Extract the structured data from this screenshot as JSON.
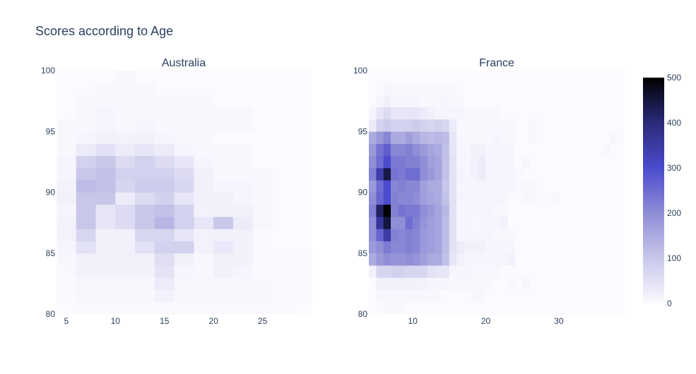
{
  "chart_data": {
    "type": "heatmap",
    "title": "Scores according to Age",
    "colorscale": [
      "#fbfaff",
      "#c8c7ea",
      "#8f8ed6",
      "#4b4bcd",
      "#2a2a7a",
      "#000000"
    ],
    "colorbar": {
      "range": [
        0,
        500
      ],
      "ticks": [
        0,
        100,
        200,
        300,
        400,
        500
      ]
    },
    "subplots": [
      {
        "title": "Australia",
        "x_range": [
          4,
          30
        ],
        "y_range": [
          80,
          100
        ],
        "x_bin": 2,
        "y_bin": 1,
        "x_ticks": [
          "5",
          "10",
          "15",
          "20",
          "25"
        ],
        "y_ticks": [
          "80",
          "85",
          "90",
          "95",
          "100"
        ],
        "x_start": 4,
        "y_start": 80,
        "z": [
          [
            0,
            2,
            2,
            2,
            2,
            2,
            2,
            1,
            1,
            1,
            1,
            1,
            0
          ],
          [
            2,
            5,
            5,
            5,
            5,
            15,
            5,
            5,
            5,
            5,
            5,
            1,
            1
          ],
          [
            2,
            8,
            8,
            8,
            8,
            30,
            5,
            5,
            5,
            5,
            5,
            1,
            1
          ],
          [
            4,
            15,
            15,
            15,
            15,
            45,
            10,
            5,
            20,
            10,
            2,
            1,
            3
          ],
          [
            5,
            20,
            20,
            20,
            20,
            55,
            20,
            5,
            20,
            20,
            2,
            1,
            3
          ],
          [
            10,
            50,
            20,
            20,
            50,
            80,
            80,
            15,
            35,
            20,
            2,
            0,
            0
          ],
          [
            15,
            70,
            20,
            20,
            70,
            70,
            40,
            15,
            20,
            20,
            2,
            0,
            0
          ],
          [
            15,
            100,
            40,
            60,
            100,
            130,
            80,
            40,
            100,
            30,
            5,
            0,
            0
          ],
          [
            10,
            100,
            40,
            60,
            100,
            110,
            80,
            15,
            20,
            20,
            5,
            0,
            0
          ],
          [
            20,
            100,
            100,
            30,
            60,
            80,
            40,
            20,
            20,
            10,
            5,
            0,
            0
          ],
          [
            15,
            120,
            110,
            70,
            90,
            90,
            70,
            20,
            10,
            10,
            5,
            0,
            0
          ],
          [
            10,
            100,
            110,
            80,
            80,
            80,
            60,
            20,
            5,
            5,
            5,
            0,
            0
          ],
          [
            10,
            80,
            100,
            60,
            80,
            60,
            40,
            10,
            5,
            5,
            0,
            0,
            0
          ],
          [
            5,
            30,
            50,
            30,
            40,
            30,
            10,
            5,
            5,
            5,
            0,
            0,
            0
          ],
          [
            5,
            10,
            20,
            15,
            20,
            10,
            5,
            5,
            0,
            0,
            0,
            0,
            0
          ],
          [
            5,
            5,
            10,
            5,
            10,
            5,
            5,
            5,
            5,
            5,
            0,
            0,
            0
          ],
          [
            0,
            5,
            10,
            5,
            5,
            5,
            5,
            5,
            5,
            5,
            0,
            0,
            0
          ],
          [
            0,
            5,
            5,
            5,
            5,
            5,
            5,
            5,
            0,
            0,
            0,
            0,
            0
          ],
          [
            0,
            0,
            5,
            5,
            5,
            0,
            0,
            0,
            0,
            0,
            0,
            0,
            0
          ],
          [
            0,
            0,
            0,
            5,
            0,
            0,
            0,
            0,
            0,
            0,
            0,
            0,
            0
          ]
        ]
      },
      {
        "title": "France",
        "x_range": [
          4,
          39
        ],
        "y_range": [
          80,
          100
        ],
        "x_bin": 1,
        "y_bin": 1,
        "x_ticks": [
          "10",
          "20",
          "30"
        ],
        "y_ticks": [
          "80",
          "85",
          "90",
          "95",
          "100"
        ],
        "x_start": 4,
        "y_start": 80,
        "z": [
          [
            0,
            0,
            5,
            5,
            5,
            0,
            0,
            0,
            0,
            0,
            0,
            0,
            0,
            0,
            0,
            0,
            0,
            0,
            0,
            0,
            0,
            0,
            0,
            0,
            0,
            0,
            0,
            0,
            0,
            0,
            0,
            0,
            0,
            0,
            0
          ],
          [
            0,
            5,
            5,
            5,
            5,
            5,
            5,
            5,
            5,
            5,
            0,
            0,
            0,
            0,
            5,
            5,
            0,
            0,
            0,
            0,
            0,
            0,
            0,
            0,
            0,
            0,
            0,
            0,
            0,
            0,
            0,
            0,
            0,
            0,
            0
          ],
          [
            0,
            20,
            20,
            20,
            20,
            20,
            15,
            15,
            10,
            10,
            10,
            5,
            5,
            5,
            5,
            5,
            5,
            0,
            0,
            5,
            0,
            5,
            0,
            0,
            0,
            0,
            0,
            0,
            0,
            0,
            0,
            0,
            0,
            0,
            0
          ],
          [
            20,
            70,
            70,
            80,
            80,
            70,
            70,
            70,
            50,
            40,
            40,
            10,
            10,
            10,
            5,
            5,
            5,
            5,
            0,
            0,
            0,
            0,
            0,
            0,
            0,
            0,
            0,
            0,
            0,
            0,
            0,
            0,
            0,
            0,
            0
          ],
          [
            150,
            180,
            200,
            190,
            190,
            200,
            190,
            170,
            150,
            150,
            110,
            40,
            20,
            10,
            10,
            10,
            10,
            10,
            10,
            20,
            0,
            0,
            0,
            0,
            0,
            0,
            0,
            0,
            0,
            0,
            0,
            0,
            0,
            0,
            0
          ],
          [
            180,
            200,
            230,
            210,
            210,
            220,
            210,
            180,
            170,
            160,
            120,
            50,
            30,
            20,
            20,
            20,
            10,
            10,
            10,
            10,
            0,
            0,
            0,
            0,
            0,
            0,
            0,
            0,
            0,
            0,
            0,
            0,
            0,
            0,
            0
          ],
          [
            200,
            260,
            350,
            220,
            210,
            220,
            210,
            180,
            170,
            160,
            120,
            50,
            10,
            10,
            10,
            10,
            10,
            5,
            5,
            5,
            0,
            0,
            0,
            0,
            0,
            0,
            0,
            0,
            0,
            0,
            0,
            0,
            0,
            0,
            0
          ],
          [
            200,
            360,
            450,
            200,
            200,
            250,
            220,
            190,
            170,
            160,
            120,
            50,
            10,
            10,
            5,
            10,
            10,
            10,
            20,
            0,
            0,
            0,
            0,
            0,
            0,
            0,
            0,
            0,
            0,
            0,
            0,
            0,
            0,
            0,
            0
          ],
          [
            220,
            420,
            500,
            220,
            240,
            230,
            230,
            200,
            180,
            160,
            130,
            50,
            10,
            10,
            10,
            10,
            10,
            5,
            5,
            0,
            0,
            0,
            0,
            0,
            0,
            0,
            0,
            0,
            0,
            0,
            0,
            0,
            0,
            0,
            0
          ],
          [
            200,
            260,
            300,
            220,
            210,
            210,
            200,
            170,
            160,
            150,
            110,
            50,
            10,
            10,
            10,
            10,
            10,
            10,
            10,
            0,
            0,
            5,
            5,
            0,
            0,
            5,
            0,
            0,
            0,
            0,
            0,
            0,
            0,
            0,
            0
          ],
          [
            180,
            250,
            300,
            210,
            220,
            210,
            210,
            170,
            150,
            150,
            100,
            50,
            10,
            10,
            10,
            10,
            10,
            10,
            10,
            10,
            5,
            5,
            5,
            0,
            0,
            0,
            0,
            0,
            0,
            0,
            0,
            0,
            0,
            0,
            0
          ],
          [
            220,
            340,
            440,
            240,
            230,
            250,
            250,
            200,
            180,
            160,
            110,
            50,
            10,
            10,
            20,
            30,
            10,
            10,
            10,
            10,
            5,
            0,
            0,
            0,
            0,
            0,
            0,
            0,
            0,
            0,
            0,
            0,
            0,
            0,
            0
          ],
          [
            200,
            250,
            300,
            230,
            230,
            220,
            220,
            200,
            170,
            160,
            110,
            50,
            10,
            10,
            20,
            30,
            10,
            10,
            10,
            10,
            0,
            5,
            0,
            0,
            0,
            0,
            0,
            0,
            0,
            0,
            0,
            0,
            0,
            0,
            0
          ],
          [
            180,
            240,
            270,
            210,
            210,
            220,
            200,
            180,
            160,
            150,
            110,
            40,
            10,
            10,
            20,
            20,
            10,
            10,
            10,
            10,
            0,
            0,
            0,
            0,
            0,
            0,
            0,
            0,
            0,
            0,
            0,
            0,
            5,
            0,
            0
          ],
          [
            150,
            180,
            210,
            150,
            150,
            170,
            150,
            130,
            120,
            130,
            120,
            40,
            5,
            5,
            5,
            5,
            5,
            10,
            5,
            5,
            0,
            0,
            5,
            0,
            0,
            0,
            0,
            0,
            0,
            0,
            0,
            0,
            0,
            5,
            0
          ],
          [
            30,
            80,
            90,
            80,
            80,
            80,
            90,
            80,
            70,
            80,
            70,
            30,
            5,
            5,
            5,
            5,
            5,
            5,
            5,
            5,
            0,
            0,
            5,
            0,
            0,
            0,
            0,
            0,
            0,
            0,
            0,
            0,
            0,
            0,
            0
          ],
          [
            10,
            40,
            60,
            40,
            40,
            40,
            40,
            30,
            20,
            10,
            10,
            10,
            10,
            5,
            5,
            5,
            5,
            5,
            0,
            0,
            0,
            0,
            0,
            0,
            0,
            0,
            0,
            0,
            0,
            0,
            0,
            0,
            0,
            0,
            0
          ],
          [
            0,
            10,
            20,
            10,
            10,
            10,
            10,
            5,
            5,
            5,
            10,
            5,
            5,
            0,
            0,
            0,
            0,
            0,
            0,
            0,
            0,
            0,
            0,
            0,
            0,
            0,
            0,
            0,
            0,
            0,
            0,
            0,
            0,
            0,
            0
          ],
          [
            0,
            0,
            10,
            5,
            5,
            5,
            5,
            5,
            5,
            5,
            5,
            5,
            0,
            0,
            0,
            0,
            0,
            0,
            0,
            0,
            0,
            0,
            0,
            0,
            0,
            0,
            0,
            0,
            0,
            0,
            0,
            0,
            0,
            0,
            0
          ],
          [
            0,
            0,
            0,
            0,
            0,
            0,
            0,
            0,
            0,
            0,
            0,
            0,
            0,
            0,
            0,
            0,
            0,
            0,
            0,
            0,
            0,
            0,
            0,
            0,
            0,
            0,
            0,
            0,
            0,
            0,
            0,
            0,
            0,
            0,
            0
          ]
        ]
      }
    ]
  }
}
